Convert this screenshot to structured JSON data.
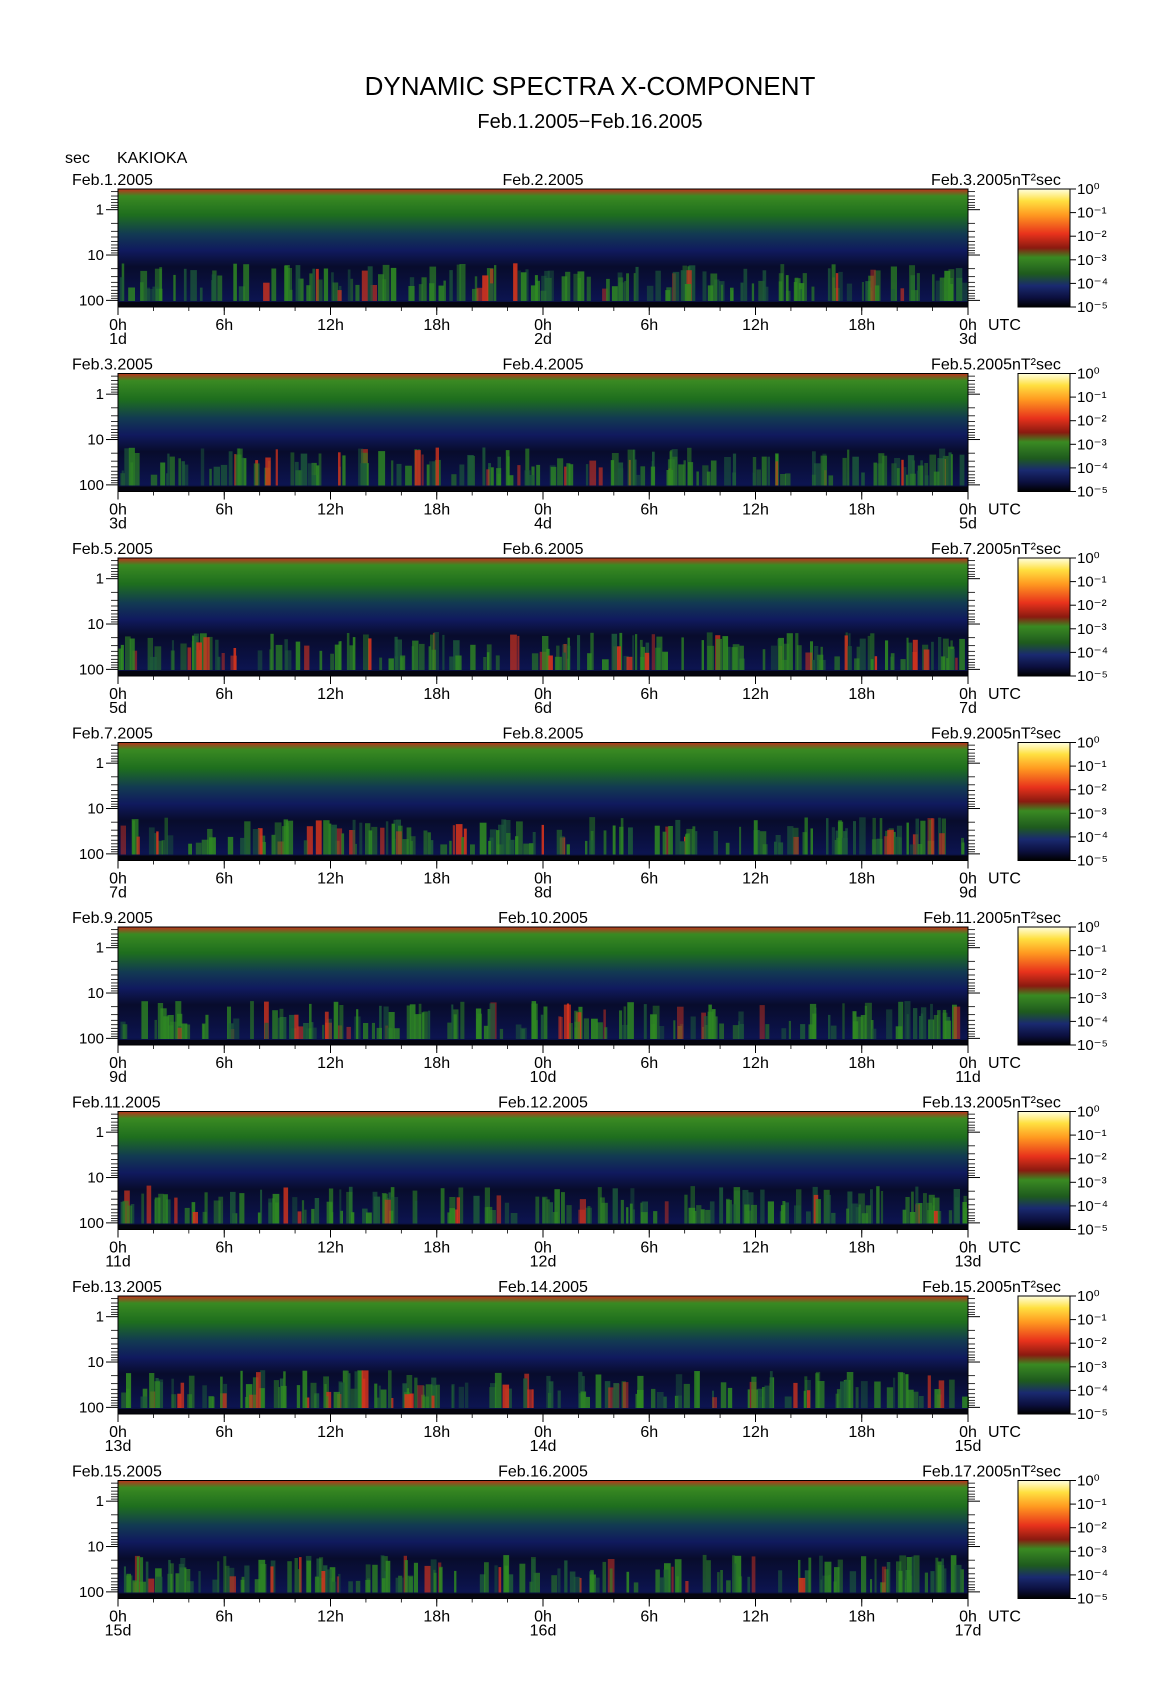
{
  "title": "DYNAMIC SPECTRA X-COMPONENT",
  "subtitle": "Feb.1.2005−Feb.16.2005",
  "y_unit_label": "sec",
  "station": "KAKIOKA",
  "colorbar_unit": "nT²sec",
  "colorbar_ticks": [
    "10⁰",
    "10⁻¹",
    "10⁻²",
    "10⁻³",
    "10⁻⁴",
    "10⁻⁵"
  ],
  "colors": {
    "red": "#e8321c",
    "green": "#2e8c1e",
    "navy": "#101a5e",
    "black": "#050510"
  },
  "chart_data": {
    "type": "heatmap",
    "title": "DYNAMIC SPECTRA X-COMPONENT",
    "subtitle": "Feb.1.2005−Feb.16.2005",
    "y_label": "sec",
    "y_scale": "log",
    "y_ticks": [
      "1",
      "10",
      "100"
    ],
    "x_ticks": [
      "0h",
      "6h",
      "12h",
      "18h",
      "0h",
      "6h",
      "12h",
      "18h",
      "0h"
    ],
    "x_unit": "UTC",
    "colorbar": {
      "label": "nT²sec",
      "min": "10⁻⁵",
      "max": "10⁰",
      "scale": "log"
    },
    "panels": [
      {
        "left_date": "Feb.1.2005",
        "mid_date": "Feb.2.2005",
        "right_date": "Feb.3.2005",
        "day_labels": [
          "1d",
          "2d",
          "3d"
        ]
      },
      {
        "left_date": "Feb.3.2005",
        "mid_date": "Feb.4.2005",
        "right_date": "Feb.5.2005",
        "day_labels": [
          "3d",
          "4d",
          "5d"
        ]
      },
      {
        "left_date": "Feb.5.2005",
        "mid_date": "Feb.6.2005",
        "right_date": "Feb.7.2005",
        "day_labels": [
          "5d",
          "6d",
          "7d"
        ]
      },
      {
        "left_date": "Feb.7.2005",
        "mid_date": "Feb.8.2005",
        "right_date": "Feb.9.2005",
        "day_labels": [
          "7d",
          "8d",
          "9d"
        ]
      },
      {
        "left_date": "Feb.9.2005",
        "mid_date": "Feb.10.2005",
        "right_date": "Feb.11.2005",
        "day_labels": [
          "9d",
          "10d",
          "11d"
        ]
      },
      {
        "left_date": "Feb.11.2005",
        "mid_date": "Feb.12.2005",
        "right_date": "Feb.13.2005",
        "day_labels": [
          "11d",
          "12d",
          "13d"
        ]
      },
      {
        "left_date": "Feb.13.2005",
        "mid_date": "Feb.14.2005",
        "right_date": "Feb.15.2005",
        "day_labels": [
          "13d",
          "14d",
          "15d"
        ]
      },
      {
        "left_date": "Feb.15.2005",
        "mid_date": "Feb.16.2005",
        "right_date": "Feb.17.2005",
        "day_labels": [
          "15d",
          "16d",
          "17d"
        ]
      }
    ]
  }
}
